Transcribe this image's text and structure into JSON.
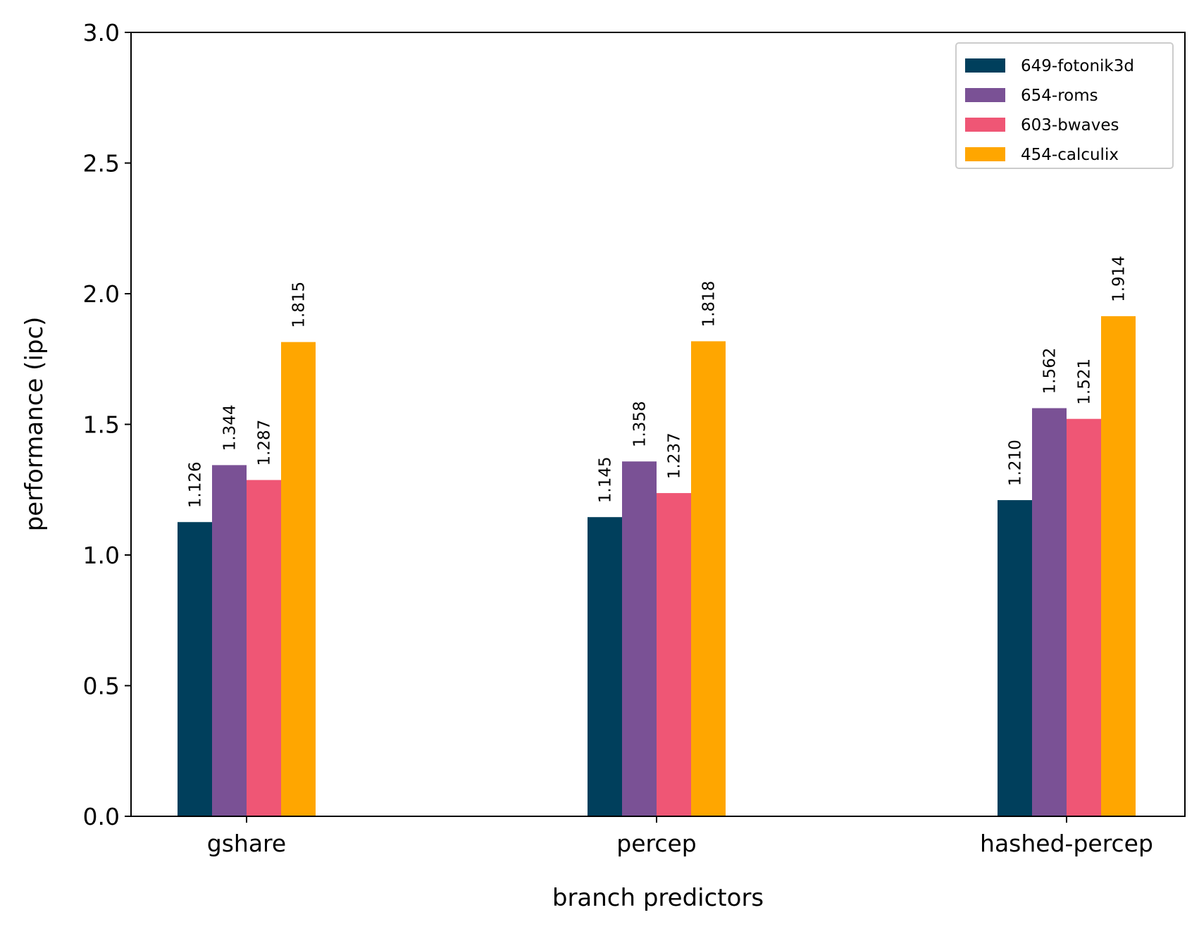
{
  "chart_data": {
    "type": "bar",
    "categories": [
      "gshare",
      "percep",
      "hashed-percep"
    ],
    "series": [
      {
        "name": "649-fotonik3d",
        "color": "#003f5c",
        "values": [
          1.126,
          1.145,
          1.21
        ]
      },
      {
        "name": "654-roms",
        "color": "#7a5195",
        "values": [
          1.344,
          1.358,
          1.562
        ]
      },
      {
        "name": "603-bwaves",
        "color": "#ef5675",
        "values": [
          1.287,
          1.237,
          1.521
        ]
      },
      {
        "name": "454-calculix",
        "color": "#ffa600",
        "values": [
          1.815,
          1.818,
          1.914
        ]
      }
    ],
    "data_labels": [
      [
        "1.126",
        "1.145",
        "1.210"
      ],
      [
        "1.344",
        "1.358",
        "1.562"
      ],
      [
        "1.287",
        "1.237",
        "1.521"
      ],
      [
        "1.815",
        "1.818",
        "1.914"
      ]
    ],
    "xlabel": "branch predictors",
    "ylabel": "performance (ipc)",
    "ylim": [
      0,
      3.0
    ],
    "yticks": [
      "0.0",
      "0.5",
      "1.0",
      "1.5",
      "2.0",
      "2.5",
      "3.0"
    ],
    "grid": false,
    "legend_position": "top-right"
  }
}
